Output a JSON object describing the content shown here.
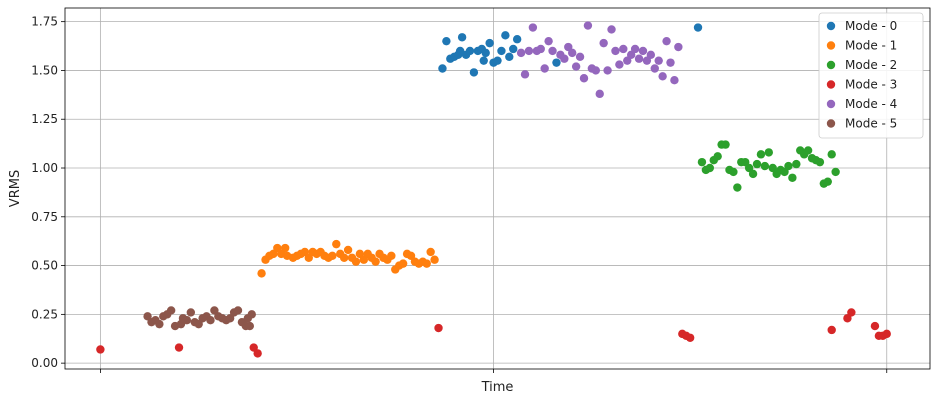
{
  "chart_data": {
    "type": "scatter",
    "xlabel": "Time",
    "ylabel": "VRMS",
    "xlim": [
      -9,
      211
    ],
    "ylim": [
      -0.03,
      1.82
    ],
    "yticks": [
      0.0,
      0.25,
      0.5,
      0.75,
      1.0,
      1.25,
      1.5,
      1.75
    ],
    "ytick_labels": [
      "0.00",
      "0.25",
      "0.50",
      "0.75",
      "1.00",
      "1.25",
      "1.50",
      "1.75"
    ],
    "xticks": [
      0,
      100,
      200
    ],
    "grid": true,
    "legend_position": "top-right",
    "series": [
      {
        "name": "Mode - 0",
        "color": "#1f77b4",
        "points": [
          [
            87,
            1.51
          ],
          [
            88,
            1.65
          ],
          [
            89,
            1.56
          ],
          [
            90,
            1.57
          ],
          [
            91,
            1.58
          ],
          [
            91.5,
            1.6
          ],
          [
            92,
            1.67
          ],
          [
            93,
            1.58
          ],
          [
            94,
            1.6
          ],
          [
            95,
            1.49
          ],
          [
            96,
            1.6
          ],
          [
            97,
            1.61
          ],
          [
            97.5,
            1.55
          ],
          [
            98,
            1.59
          ],
          [
            99,
            1.64
          ],
          [
            100,
            1.54
          ],
          [
            101,
            1.55
          ],
          [
            102,
            1.6
          ],
          [
            103,
            1.68
          ],
          [
            104,
            1.57
          ],
          [
            105,
            1.61
          ],
          [
            106,
            1.66
          ],
          [
            116,
            1.54
          ],
          [
            152,
            1.72
          ]
        ]
      },
      {
        "name": "Mode - 1",
        "color": "#ff7f0e",
        "points": [
          [
            41,
            0.46
          ],
          [
            42,
            0.53
          ],
          [
            43,
            0.55
          ],
          [
            44,
            0.56
          ],
          [
            45,
            0.59
          ],
          [
            46,
            0.56
          ],
          [
            47,
            0.59
          ],
          [
            47.5,
            0.55
          ],
          [
            49,
            0.54
          ],
          [
            50,
            0.55
          ],
          [
            51,
            0.56
          ],
          [
            52,
            0.57
          ],
          [
            53,
            0.54
          ],
          [
            54,
            0.57
          ],
          [
            55,
            0.56
          ],
          [
            56,
            0.57
          ],
          [
            57,
            0.55
          ],
          [
            58,
            0.54
          ],
          [
            59,
            0.55
          ],
          [
            60,
            0.61
          ],
          [
            61,
            0.56
          ],
          [
            62,
            0.54
          ],
          [
            63,
            0.58
          ],
          [
            64,
            0.54
          ],
          [
            65,
            0.52
          ],
          [
            66,
            0.56
          ],
          [
            67,
            0.53
          ],
          [
            68,
            0.56
          ],
          [
            69,
            0.54
          ],
          [
            70,
            0.52
          ],
          [
            71,
            0.56
          ],
          [
            72,
            0.54
          ],
          [
            73,
            0.53
          ],
          [
            74,
            0.55
          ],
          [
            75,
            0.48
          ],
          [
            76,
            0.5
          ],
          [
            77,
            0.51
          ],
          [
            78,
            0.56
          ],
          [
            79,
            0.55
          ],
          [
            80,
            0.52
          ],
          [
            81,
            0.51
          ],
          [
            82,
            0.52
          ],
          [
            83,
            0.51
          ],
          [
            84,
            0.57
          ],
          [
            85,
            0.53
          ]
        ]
      },
      {
        "name": "Mode - 2",
        "color": "#2ca02c",
        "points": [
          [
            153,
            1.03
          ],
          [
            154,
            0.99
          ],
          [
            155,
            1.0
          ],
          [
            156,
            1.04
          ],
          [
            157,
            1.06
          ],
          [
            158,
            1.12
          ],
          [
            159,
            1.12
          ],
          [
            160,
            0.99
          ],
          [
            161,
            0.98
          ],
          [
            162,
            0.9
          ],
          [
            163,
            1.03
          ],
          [
            164,
            1.03
          ],
          [
            165,
            1.0
          ],
          [
            166,
            0.97
          ],
          [
            167,
            1.02
          ],
          [
            168,
            1.07
          ],
          [
            169,
            1.01
          ],
          [
            170,
            1.08
          ],
          [
            171,
            1.0
          ],
          [
            172,
            0.97
          ],
          [
            173,
            0.99
          ],
          [
            174,
            0.98
          ],
          [
            175,
            1.01
          ],
          [
            176,
            0.95
          ],
          [
            177,
            1.02
          ],
          [
            178,
            1.09
          ],
          [
            179,
            1.07
          ],
          [
            180,
            1.09
          ],
          [
            181,
            1.05
          ],
          [
            182,
            1.04
          ],
          [
            183,
            1.03
          ],
          [
            184,
            0.92
          ],
          [
            185,
            0.93
          ],
          [
            186,
            1.07
          ],
          [
            187,
            0.98
          ]
        ]
      },
      {
        "name": "Mode - 3",
        "color": "#d62728",
        "points": [
          [
            0,
            0.07
          ],
          [
            20,
            0.08
          ],
          [
            39,
            0.08
          ],
          [
            40,
            0.05
          ],
          [
            86,
            0.18
          ],
          [
            148,
            0.15
          ],
          [
            149,
            0.14
          ],
          [
            150,
            0.13
          ],
          [
            186,
            0.17
          ],
          [
            190,
            0.23
          ],
          [
            191,
            0.26
          ],
          [
            197,
            0.19
          ],
          [
            198,
            0.14
          ],
          [
            199,
            0.14
          ],
          [
            200,
            0.15
          ]
        ]
      },
      {
        "name": "Mode - 4",
        "color": "#9467bd",
        "points": [
          [
            107,
            1.59
          ],
          [
            108,
            1.48
          ],
          [
            109,
            1.6
          ],
          [
            110,
            1.72
          ],
          [
            111,
            1.6
          ],
          [
            112,
            1.61
          ],
          [
            113,
            1.51
          ],
          [
            114,
            1.65
          ],
          [
            115,
            1.6
          ],
          [
            117,
            1.58
          ],
          [
            118,
            1.56
          ],
          [
            119,
            1.62
          ],
          [
            120,
            1.59
          ],
          [
            121,
            1.52
          ],
          [
            122,
            1.57
          ],
          [
            123,
            1.46
          ],
          [
            124,
            1.73
          ],
          [
            125,
            1.51
          ],
          [
            126,
            1.5
          ],
          [
            127,
            1.38
          ],
          [
            128,
            1.64
          ],
          [
            129,
            1.5
          ],
          [
            130,
            1.71
          ],
          [
            131,
            1.6
          ],
          [
            132,
            1.53
          ],
          [
            133,
            1.61
          ],
          [
            134,
            1.55
          ],
          [
            135,
            1.58
          ],
          [
            136,
            1.61
          ],
          [
            137,
            1.56
          ],
          [
            138,
            1.6
          ],
          [
            139,
            1.55
          ],
          [
            140,
            1.58
          ],
          [
            141,
            1.51
          ],
          [
            142,
            1.55
          ],
          [
            143,
            1.47
          ],
          [
            144,
            1.65
          ],
          [
            145,
            1.54
          ],
          [
            146,
            1.45
          ],
          [
            147,
            1.62
          ]
        ]
      },
      {
        "name": "Mode - 5",
        "color": "#8c564b",
        "points": [
          [
            12,
            0.24
          ],
          [
            13,
            0.21
          ],
          [
            14,
            0.22
          ],
          [
            15,
            0.2
          ],
          [
            16,
            0.24
          ],
          [
            17,
            0.25
          ],
          [
            18,
            0.27
          ],
          [
            19,
            0.19
          ],
          [
            20.5,
            0.2
          ],
          [
            21,
            0.23
          ],
          [
            22,
            0.22
          ],
          [
            23,
            0.26
          ],
          [
            24,
            0.21
          ],
          [
            25,
            0.2
          ],
          [
            26,
            0.23
          ],
          [
            27,
            0.24
          ],
          [
            28,
            0.22
          ],
          [
            29,
            0.27
          ],
          [
            30,
            0.24
          ],
          [
            31,
            0.23
          ],
          [
            32,
            0.22
          ],
          [
            33,
            0.23
          ],
          [
            34,
            0.26
          ],
          [
            35,
            0.27
          ],
          [
            36,
            0.21
          ],
          [
            37,
            0.19
          ],
          [
            37.5,
            0.23
          ],
          [
            38,
            0.19
          ],
          [
            38.5,
            0.25
          ]
        ]
      }
    ]
  }
}
